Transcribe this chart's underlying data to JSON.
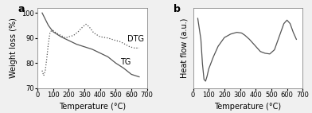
{
  "background_color": "#f0f0f0",
  "panel_bg": "#ffffff",
  "line_color": "#555555",
  "label_a": "a",
  "label_b": "b",
  "xlabel": "Temperature (°C)",
  "ylabel_a": "Weight loss (%)",
  "ylabel_b": "Heat flow (a.u.)",
  "xlim": [
    0,
    700
  ],
  "ylim_a": [
    70,
    102
  ],
  "yticks_a": [
    70,
    80,
    90,
    100
  ],
  "xticks": [
    0,
    100,
    200,
    300,
    400,
    500,
    600,
    700
  ],
  "tg_label": "TG",
  "dtg_label": "DTG",
  "tg_x": [
    30,
    50,
    70,
    100,
    150,
    200,
    250,
    300,
    350,
    400,
    450,
    500,
    550,
    600,
    650
  ],
  "tg_y": [
    100,
    97.5,
    95.0,
    92.5,
    90.5,
    89.0,
    87.5,
    86.5,
    85.5,
    84.0,
    82.5,
    80.0,
    78.0,
    75.5,
    74.5
  ],
  "dtg_x": [
    30,
    40,
    50,
    60,
    70,
    80,
    90,
    100,
    120,
    150,
    180,
    200,
    230,
    260,
    290,
    310,
    330,
    360,
    400,
    450,
    500,
    530,
    560,
    590,
    620,
    650
  ],
  "dtg_y": [
    77,
    75,
    77,
    82,
    88,
    92,
    93,
    93,
    92,
    91,
    90,
    90.5,
    91,
    92.5,
    94.5,
    95.5,
    94.5,
    92,
    90.5,
    90,
    89,
    88.5,
    87.5,
    86.5,
    86,
    86
  ],
  "dta_x": [
    30,
    50,
    60,
    70,
    80,
    90,
    100,
    130,
    160,
    200,
    240,
    280,
    310,
    330,
    360,
    400,
    430,
    460,
    490,
    520,
    560,
    580,
    600,
    620,
    640,
    660
  ],
  "dta_y": [
    0.9,
    0.3,
    -0.4,
    -0.85,
    -0.9,
    -0.75,
    -0.55,
    -0.2,
    0.1,
    0.35,
    0.45,
    0.5,
    0.48,
    0.42,
    0.3,
    0.1,
    -0.05,
    -0.1,
    -0.12,
    0.0,
    0.5,
    0.75,
    0.85,
    0.75,
    0.5,
    0.3
  ],
  "ylim_b": [
    -1.1,
    1.2
  ],
  "fontsize_label": 7,
  "fontsize_tick": 6,
  "fontsize_annot": 7,
  "fontsize_panel": 9
}
